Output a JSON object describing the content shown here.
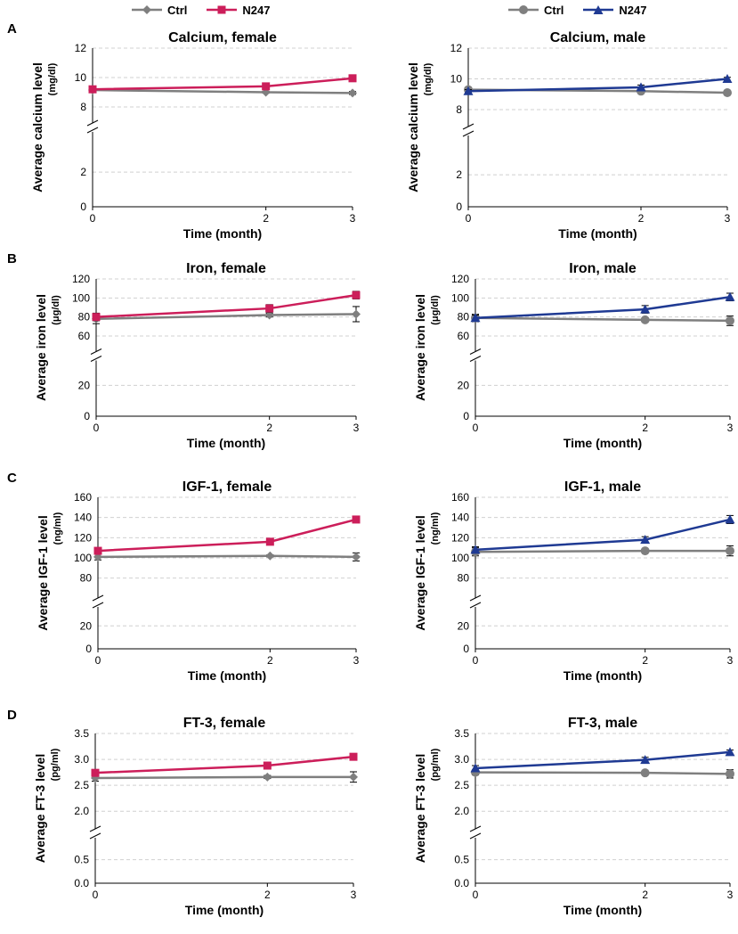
{
  "legends": [
    {
      "entries": [
        {
          "label": "Ctrl",
          "color": "#7f7f7f",
          "marker": "diamond"
        },
        {
          "label": "N247",
          "color": "#cc1e5a",
          "marker": "square"
        }
      ]
    },
    {
      "entries": [
        {
          "label": "Ctrl",
          "color": "#7f7f7f",
          "marker": "circle"
        },
        {
          "label": "N247",
          "color": "#1f3a93",
          "marker": "triangle"
        }
      ]
    }
  ],
  "panel_letters": [
    "A",
    "B",
    "C",
    "D"
  ],
  "chart_data": [
    {
      "type": "line",
      "title": "Calcium, female",
      "ylabel": "Average calcium level",
      "yunit": "(mg/dl)",
      "xlabel": "Time (month)",
      "x": [
        0,
        2,
        3
      ],
      "upper_ticks": [
        "8",
        "10",
        "12"
      ],
      "lower_ticks": [
        "0",
        "2"
      ],
      "upper_range": [
        8,
        12
      ],
      "lower_range": [
        0,
        3.4
      ],
      "series": [
        {
          "name": "Ctrl",
          "color": "#7f7f7f",
          "marker": "diamond",
          "values": [
            9.15,
            9.0,
            8.95
          ],
          "errors": [
            0.15,
            0.05,
            0.1
          ]
        },
        {
          "name": "N247",
          "color": "#cc1e5a",
          "marker": "square",
          "values": [
            9.2,
            9.4,
            9.95
          ],
          "errors": [
            0.1,
            0.15,
            0.2
          ]
        }
      ]
    },
    {
      "type": "line",
      "title": "Calcium, male",
      "ylabel": "Average calcium level",
      "yunit": "(mg/dl)",
      "xlabel": "Time (month)",
      "x": [
        0,
        2,
        3
      ],
      "upper_ticks": [
        "8",
        "10",
        "12"
      ],
      "lower_ticks": [
        "0",
        "2"
      ],
      "upper_range": [
        8,
        12
      ],
      "lower_range": [
        0,
        3.4
      ],
      "series": [
        {
          "name": "Ctrl",
          "color": "#7f7f7f",
          "marker": "circle",
          "values": [
            9.3,
            9.2,
            9.1
          ],
          "errors": [
            0.15,
            0.05,
            0.15
          ]
        },
        {
          "name": "N247",
          "color": "#1f3a93",
          "marker": "triangle",
          "values": [
            9.2,
            9.45,
            10.0
          ],
          "errors": [
            0.1,
            0.15,
            0.1
          ]
        }
      ]
    },
    {
      "type": "line",
      "title": "Iron, female",
      "ylabel": "Average iron level",
      "yunit": "(μg/dl)",
      "xlabel": "Time (month)",
      "x": [
        0,
        2,
        3
      ],
      "upper_ticks": [
        "60",
        "80",
        "100",
        "120"
      ],
      "lower_ticks": [
        "0",
        "20"
      ],
      "upper_range": [
        60,
        120
      ],
      "lower_range": [
        0,
        26
      ],
      "series": [
        {
          "name": "Ctrl",
          "color": "#7f7f7f",
          "marker": "diamond",
          "values": [
            78,
            82,
            83
          ],
          "errors": [
            5,
            2,
            8
          ]
        },
        {
          "name": "N247",
          "color": "#cc1e5a",
          "marker": "square",
          "values": [
            80,
            89,
            103
          ],
          "errors": [
            4,
            4,
            4
          ]
        }
      ]
    },
    {
      "type": "line",
      "title": "Iron, male",
      "ylabel": "Average iron level",
      "yunit": "(μg/dl)",
      "xlabel": "Time (month)",
      "x": [
        0,
        2,
        3
      ],
      "upper_ticks": [
        "60",
        "80",
        "100",
        "120"
      ],
      "lower_ticks": [
        "0",
        "20"
      ],
      "upper_range": [
        60,
        120
      ],
      "lower_range": [
        0,
        26
      ],
      "series": [
        {
          "name": "Ctrl",
          "color": "#7f7f7f",
          "marker": "circle",
          "values": [
            79,
            77,
            76
          ],
          "errors": [
            4,
            2,
            5
          ]
        },
        {
          "name": "N247",
          "color": "#1f3a93",
          "marker": "triangle",
          "values": [
            79,
            88,
            101
          ],
          "errors": [
            3,
            4,
            4
          ]
        }
      ]
    },
    {
      "type": "line",
      "title": "IGF-1, female",
      "ylabel": "Average IGF-1 level",
      "yunit": "(ng/ml)",
      "xlabel": "Time (month)",
      "x": [
        0,
        2,
        3
      ],
      "upper_ticks": [
        "80",
        "100",
        "120",
        "140",
        "160"
      ],
      "lower_ticks": [
        "0",
        "20"
      ],
      "upper_range": [
        70,
        160
      ],
      "lower_range": [
        0,
        28
      ],
      "series": [
        {
          "name": "Ctrl",
          "color": "#7f7f7f",
          "marker": "diamond",
          "values": [
            101,
            102,
            101
          ],
          "errors": [
            3,
            1,
            4
          ]
        },
        {
          "name": "N247",
          "color": "#cc1e5a",
          "marker": "square",
          "values": [
            107,
            116,
            138
          ],
          "errors": [
            3,
            2,
            3
          ]
        }
      ]
    },
    {
      "type": "line",
      "title": "IGF-1, male",
      "ylabel": "Average IGF-1 level",
      "yunit": "(ng/ml)",
      "xlabel": "Time (month)",
      "x": [
        0,
        2,
        3
      ],
      "upper_ticks": [
        "80",
        "100",
        "120",
        "140",
        "160"
      ],
      "lower_ticks": [
        "0",
        "20"
      ],
      "upper_range": [
        70,
        160
      ],
      "lower_range": [
        0,
        28
      ],
      "series": [
        {
          "name": "Ctrl",
          "color": "#7f7f7f",
          "marker": "circle",
          "values": [
            106,
            107,
            107
          ],
          "errors": [
            4,
            1,
            5
          ]
        },
        {
          "name": "N247",
          "color": "#1f3a93",
          "marker": "triangle",
          "values": [
            108,
            118,
            138
          ],
          "errors": [
            3,
            3,
            4
          ]
        }
      ]
    },
    {
      "type": "line",
      "title": "FT-3, female",
      "ylabel": "Average FT-3 level",
      "yunit": "(pg/ml)",
      "xlabel": "Time (month)",
      "x": [
        0,
        2,
        3
      ],
      "upper_ticks": [
        "2.0",
        "2.5",
        "3.0",
        "3.5"
      ],
      "lower_ticks": [
        "0.0",
        "0.5"
      ],
      "upper_range": [
        1.9,
        3.5
      ],
      "lower_range": [
        0,
        0.7
      ],
      "series": [
        {
          "name": "Ctrl",
          "color": "#7f7f7f",
          "marker": "diamond",
          "values": [
            2.64,
            2.66,
            2.66
          ],
          "errors": [
            0.06,
            0.03,
            0.1
          ]
        },
        {
          "name": "N247",
          "color": "#cc1e5a",
          "marker": "square",
          "values": [
            2.74,
            2.88,
            3.05
          ],
          "errors": [
            0.05,
            0.05,
            0.05
          ]
        }
      ]
    },
    {
      "type": "line",
      "title": "FT-3, male",
      "ylabel": "Average FT-3 level",
      "yunit": "(pg/ml)",
      "xlabel": "Time (month)",
      "x": [
        0,
        2,
        3
      ],
      "upper_ticks": [
        "2.0",
        "2.5",
        "3.0",
        "3.5"
      ],
      "lower_ticks": [
        "0.0",
        "0.5"
      ],
      "upper_range": [
        1.9,
        3.5
      ],
      "lower_range": [
        0,
        0.7
      ],
      "series": [
        {
          "name": "Ctrl",
          "color": "#7f7f7f",
          "marker": "circle",
          "values": [
            2.75,
            2.74,
            2.72
          ],
          "errors": [
            0.05,
            0.02,
            0.08
          ]
        },
        {
          "name": "N247",
          "color": "#1f3a93",
          "marker": "triangle",
          "values": [
            2.83,
            2.99,
            3.14
          ],
          "errors": [
            0.05,
            0.05,
            0.04
          ]
        }
      ]
    }
  ]
}
